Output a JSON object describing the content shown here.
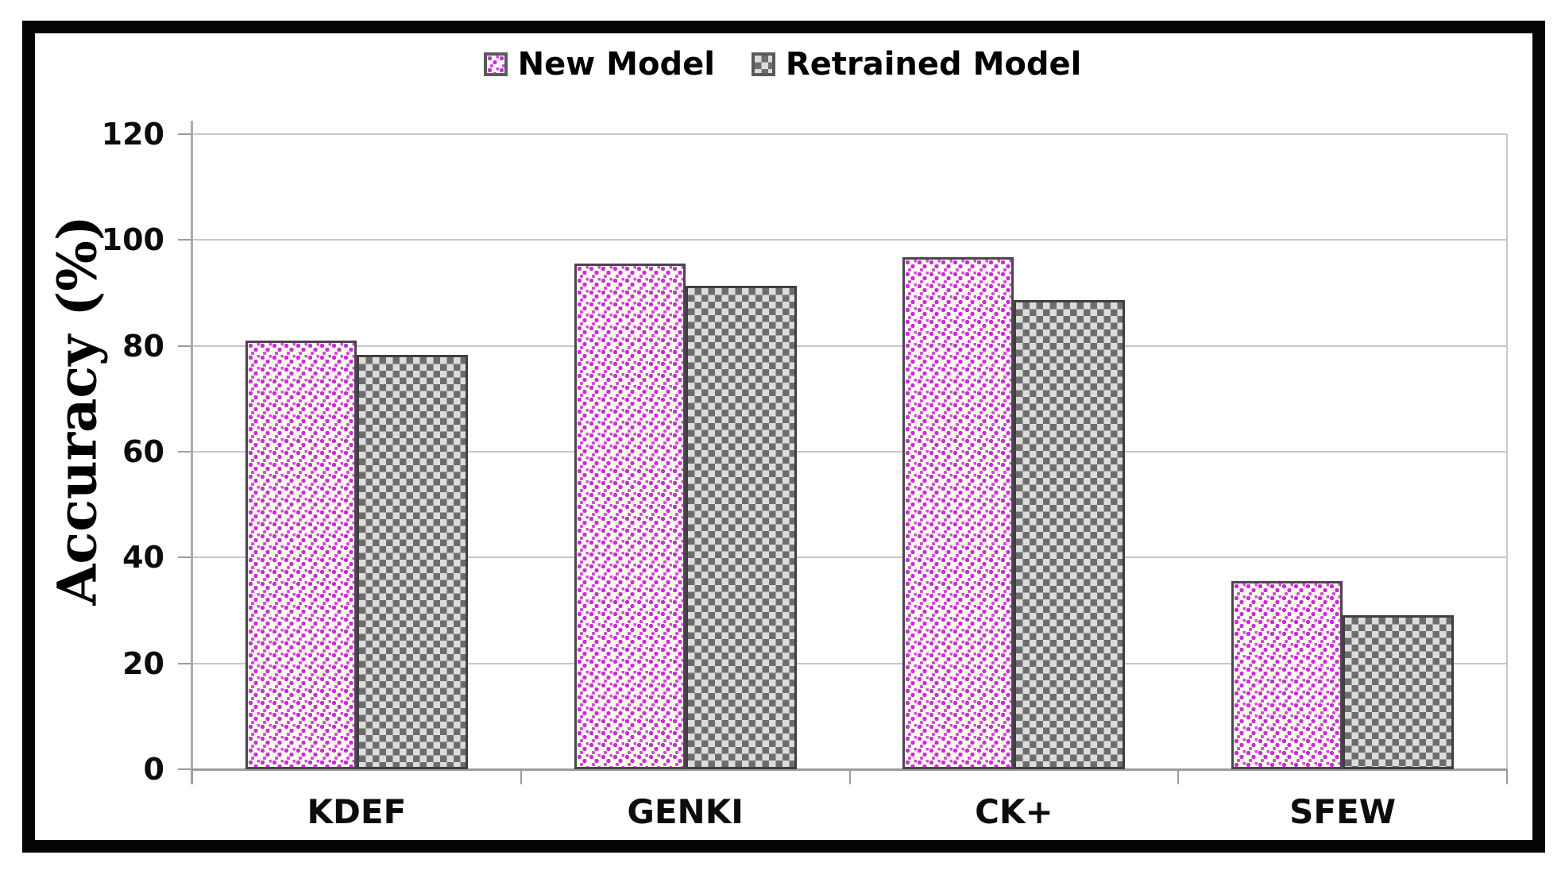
{
  "chart_data": {
    "type": "bar",
    "title": "",
    "categories": [
      "KDEF",
      "GENKI",
      "CK+",
      "SFEW"
    ],
    "series": [
      {
        "name": "New Model",
        "values": [
          81.0,
          95.5,
          96.7,
          35.5
        ],
        "pattern": "pink-dots",
        "accent_color": "#c92fd6"
      },
      {
        "name": "Retrained Model",
        "values": [
          78.3,
          91.3,
          88.6,
          29.1
        ],
        "pattern": "gray-checker",
        "accent_color": "#6e6e6e"
      }
    ],
    "xlabel": "",
    "ylabel": "Accuracy (%)",
    "ylim": [
      0,
      120
    ],
    "yticks": [
      0,
      20,
      40,
      60,
      80,
      100,
      120
    ],
    "grid": "horizontal",
    "legend_position": "top-center",
    "gridline_color": "#c6c6c6",
    "frame_color": "#050505"
  }
}
